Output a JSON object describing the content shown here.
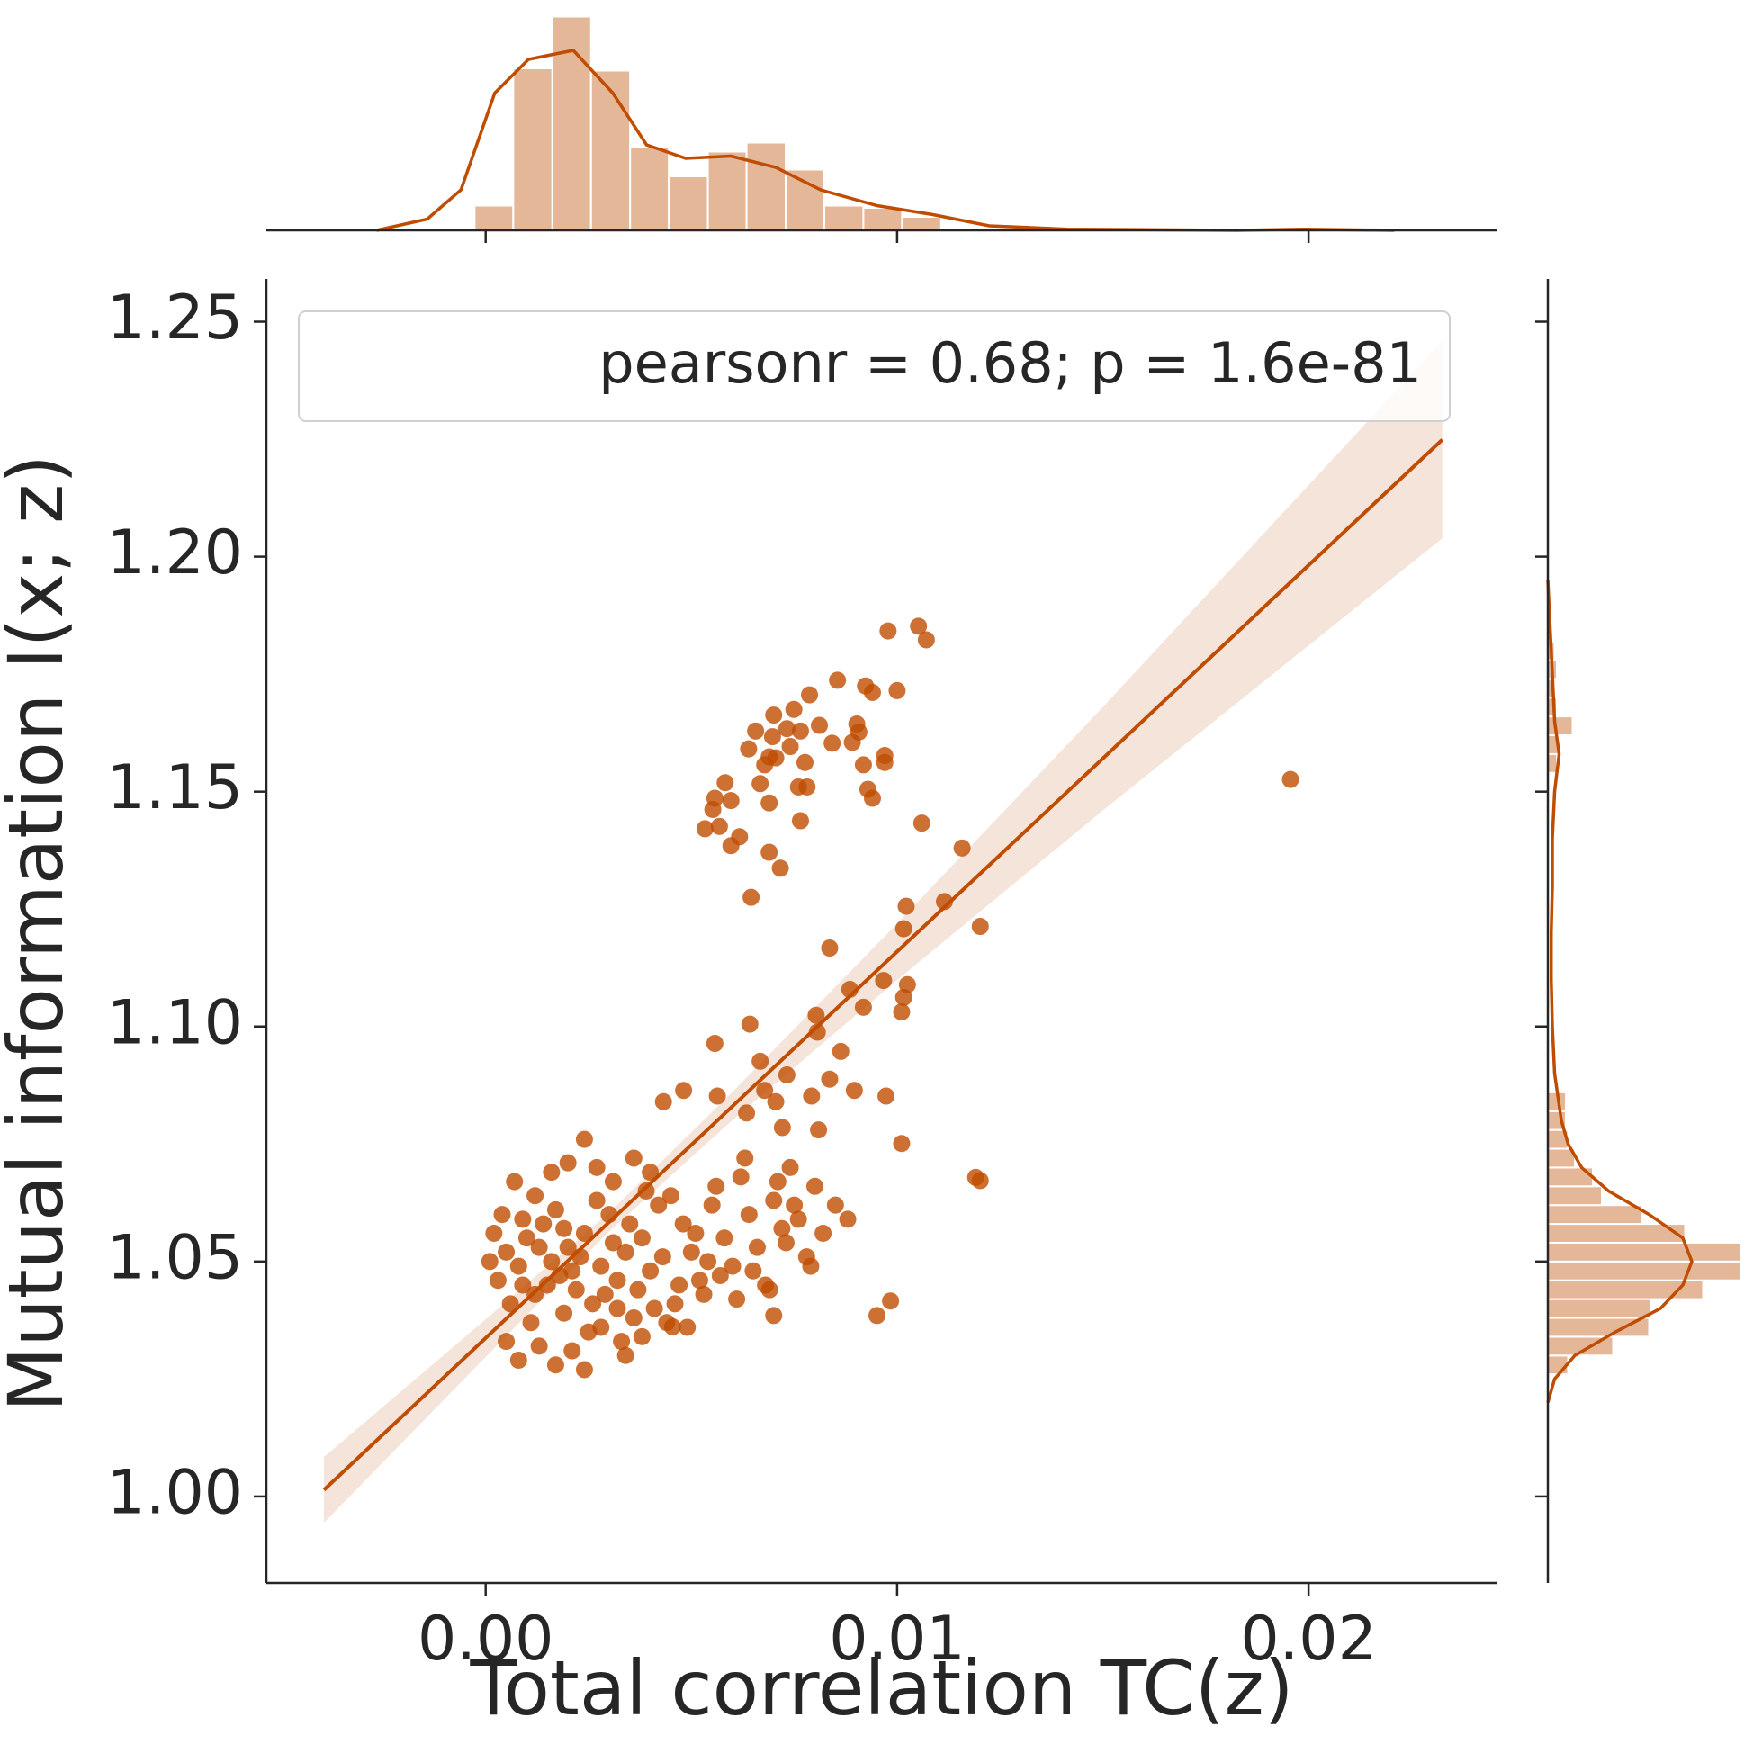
{
  "chart_data": {
    "type": "scatter",
    "xlabel": "Total correlation TC(z)",
    "ylabel": "Mutual information I(x; z)",
    "annotation": "pearsonr = 0.68; p = 1.6e-81",
    "color": "#bf4c00",
    "xlim": [
      -0.00533,
      0.02459
    ],
    "ylim": [
      0.9816,
      1.2591
    ],
    "xticks": [
      {
        "value": 0,
        "label": "0.00"
      },
      {
        "value": 0.01,
        "label": "0.01"
      },
      {
        "value": 0.02,
        "label": "0.02"
      }
    ],
    "yticks": [
      {
        "value": 1,
        "label": "1.00"
      },
      {
        "value": 1.05,
        "label": "1.05"
      },
      {
        "value": 1.1,
        "label": "1.10"
      },
      {
        "value": 1.15,
        "label": "1.15"
      },
      {
        "value": 1.2,
        "label": "1.20"
      },
      {
        "value": 1.25,
        "label": "1.25"
      }
    ],
    "x": [
      0.00978,
      0.01052,
      0.01071,
      0.00855,
      0.00923,
      0.01,
      0.0094,
      0.00787,
      0.00749,
      0.007,
      0.00811,
      0.00732,
      0.00656,
      0.00902,
      0.00907,
      0.00765,
      0.00842,
      0.00697,
      0.0074,
      0.0097,
      0.00639,
      0.00689,
      0.00678,
      0.00705,
      0.00891,
      0.00918,
      0.0097,
      0.00776,
      0.00582,
      0.00557,
      0.00552,
      0.00596,
      0.00667,
      0.0076,
      0.00781,
      0.00929,
      0.0094,
      0.00689,
      0.00533,
      0.00568,
      0.00617,
      0.00596,
      0.00765,
      0.0106,
      0.00689,
      0.00716,
      0.00645,
      0.01158,
      0.01115,
      0.01022,
      0.01016,
      0.01202,
      0.00836,
      0.01956,
      0.00967,
      0.01025,
      0.01016,
      0.00885,
      0.00918,
      0.01011,
      0.00803,
      0.00642,
      0.00557,
      0.00667,
      0.00563,
      0.00481,
      0.00432,
      0.00806,
      0.00863,
      0.00732,
      0.00678,
      0.00705,
      0.00792,
      0.00896,
      0.00973,
      0.00836,
      0.00809,
      0.01011,
      0.01191,
      0.01202,
      0.00634,
      0.00721,
      0.00951,
      0.00984,
      0.007,
      0.00454,
      0.0003,
      0.0005,
      0.0008,
      0.001,
      0.0012,
      0.0014,
      0.0016,
      0.0018,
      0.002,
      0.0022,
      0.0024,
      0.0026,
      0.0028,
      0.003,
      0.0032,
      0.0034,
      0.0036,
      0.0038,
      0.004,
      0.0042,
      0.0002,
      0.0006,
      0.0009,
      0.0011,
      0.0013,
      0.0015,
      0.0017,
      0.0019,
      0.0021,
      0.0023,
      0.0025,
      0.0027,
      0.0029,
      0.0031,
      0.0033,
      0.0035,
      0.0037,
      0.0039,
      0.0041,
      0.0043,
      0.0001,
      0.0004,
      0.0007,
      0.0012,
      0.0016,
      0.002,
      0.0024,
      0.0027,
      0.0031,
      0.0036,
      0.004,
      0.0045,
      0.0048,
      0.005,
      0.0052,
      0.0055,
      0.0058,
      0.006,
      0.0062,
      0.0064,
      0.0066,
      0.0068,
      0.007,
      0.0072,
      0.0074,
      0.0076,
      0.0078,
      0.008,
      0.0082,
      0.0085,
      0.0088,
      0.0046,
      0.0049,
      0.0053,
      0.0057,
      0.0061,
      0.0065,
      0.0069,
      0.0073,
      0.0079,
      0.0005,
      0.0008,
      0.0013,
      0.0017,
      0.0021,
      0.0024,
      0.0028,
      0.0032,
      0.0034,
      0.0038,
      0.0044,
      0.0047,
      0.0051,
      0.0054,
      0.0056,
      0.0063,
      0.0071,
      0.0075,
      0.0009,
      0.0019
    ],
    "values": [
      1.1842,
      1.1852,
      1.1823,
      1.1737,
      1.1725,
      1.1715,
      1.1711,
      1.1706,
      1.1675,
      1.1663,
      1.1641,
      1.1634,
      1.1629,
      1.1644,
      1.1627,
      1.1629,
      1.1603,
      1.1617,
      1.1596,
      1.1577,
      1.1591,
      1.1574,
      1.1557,
      1.1572,
      1.1605,
      1.1557,
      1.1562,
      1.1562,
      1.1519,
      1.1486,
      1.1462,
      1.1481,
      1.1517,
      1.151,
      1.151,
      1.1505,
      1.1486,
      1.1476,
      1.1421,
      1.1426,
      1.1404,
      1.1385,
      1.1438,
      1.1433,
      1.1371,
      1.1337,
      1.1275,
      1.138,
      1.1266,
      1.1256,
      1.1208,
      1.1213,
      1.1167,
      1.1526,
      1.1098,
      1.1089,
      1.1062,
      1.1079,
      1.1041,
      1.1031,
      1.1024,
      1.1005,
      1.0964,
      1.0926,
      1.0852,
      1.0864,
      1.084,
      1.0988,
      1.0947,
      1.0897,
      1.0864,
      1.084,
      1.0852,
      1.0864,
      1.0852,
      1.0888,
      1.078,
      1.0751,
      1.0679,
      1.0672,
      1.0816,
      1.0785,
      1.0385,
      1.0416,
      1.0385,
      1.0361,
      1.046,
      1.052,
      1.049,
      1.055,
      1.043,
      1.058,
      1.05,
      1.047,
      1.053,
      1.044,
      1.056,
      1.041,
      1.049,
      1.06,
      1.046,
      1.052,
      1.038,
      1.055,
      1.048,
      1.062,
      1.056,
      1.041,
      1.059,
      1.037,
      1.053,
      1.045,
      1.061,
      1.039,
      1.048,
      1.051,
      1.035,
      1.063,
      1.043,
      1.054,
      1.033,
      1.058,
      1.044,
      1.065,
      1.04,
      1.051,
      1.05,
      1.06,
      1.067,
      1.064,
      1.069,
      1.071,
      1.076,
      1.07,
      1.067,
      1.072,
      1.069,
      1.064,
      1.058,
      1.052,
      1.046,
      1.062,
      1.055,
      1.049,
      1.068,
      1.06,
      1.053,
      1.045,
      1.063,
      1.057,
      1.07,
      1.059,
      1.051,
      1.066,
      1.056,
      1.062,
      1.059,
      1.041,
      1.036,
      1.043,
      1.047,
      1.042,
      1.048,
      1.044,
      1.054,
      1.049,
      1.033,
      1.029,
      1.032,
      1.028,
      1.031,
      1.027,
      1.036,
      1.04,
      1.03,
      1.034,
      1.037,
      1.045,
      1.056,
      1.05,
      1.066,
      1.072,
      1.067,
      1.062,
      1.045,
      1.057
    ],
    "regression": {
      "x": [
        -0.00393,
        0.02325
      ],
      "y": [
        1.0014,
        1.2249
      ]
    },
    "ci": {
      "x": [
        -0.00393,
        0,
        0.003,
        0.006,
        0.01,
        0.015,
        0.02325
      ],
      "lower": [
        0.9944,
        1.0297,
        1.0564,
        1.0801,
        1.1099,
        1.146,
        1.2039
      ],
      "upper": [
        1.0084,
        1.0377,
        1.0604,
        1.0861,
        1.1219,
        1.168,
        1.2459
      ]
    },
    "top_hist": {
      "bins": [
        -0.00027,
        0.00067,
        0.00162,
        0.00256,
        0.00351,
        0.00445,
        0.0054,
        0.00634,
        0.00729,
        0.00823,
        0.00918,
        0.01012,
        0.01107
      ],
      "counts": [
        11,
        72,
        95,
        71,
        37,
        24,
        35,
        39,
        27,
        11,
        10,
        6
      ]
    },
    "top_kde": {
      "x": [
        -0.00265,
        -0.00142,
        -0.0006,
        0.00022,
        0.00104,
        0.00213,
        0.00309,
        0.00391,
        0.00486,
        0.00596,
        0.00705,
        0.00814,
        0.00951,
        0.01087,
        0.01224,
        0.01415,
        0.01825,
        0.01989,
        0.02208
      ],
      "density": [
        0,
        5,
        18,
        61,
        76,
        80,
        61,
        38,
        32,
        33,
        28,
        18,
        11,
        7,
        2,
        0.5,
        0,
        0.5,
        0
      ]
    },
    "right_hist": {
      "bins": [
        1.026,
        1.03,
        1.034,
        1.038,
        1.042,
        1.046,
        1.05,
        1.054,
        1.058,
        1.062,
        1.066,
        1.07,
        1.074,
        1.078,
        1.082,
        1.086,
        1.09,
        1.094,
        1.098,
        1.102,
        1.106,
        1.11,
        1.114,
        1.118,
        1.122,
        1.126,
        1.13,
        1.134,
        1.138,
        1.142,
        1.146,
        1.15,
        1.154,
        1.158,
        1.162,
        1.166,
        1.17,
        1.174,
        1.178,
        1.182,
        1.186
      ],
      "counts": [
        9,
        29,
        45,
        46,
        69,
        86,
        86,
        61,
        42,
        24,
        20,
        12,
        9,
        8,
        8,
        0,
        0,
        0,
        0,
        0,
        0,
        0,
        0,
        0,
        0,
        0,
        0,
        0,
        0,
        0,
        0,
        0,
        4,
        5,
        11,
        4,
        3,
        4,
        3,
        2
      ]
    },
    "right_kde": {
      "y": [
        1.02,
        1.025,
        1.03,
        1.035,
        1.04,
        1.045,
        1.05,
        1.055,
        1.06,
        1.065,
        1.07,
        1.075,
        1.08,
        1.09,
        1.1,
        1.11,
        1.12,
        1.13,
        1.14,
        1.15,
        1.158,
        1.165,
        1.175,
        1.185,
        1.195
      ],
      "density": [
        0,
        3,
        12,
        30,
        50,
        60,
        64,
        60,
        45,
        27,
        15,
        9,
        6,
        3,
        2,
        1.5,
        1.5,
        2,
        2,
        3,
        5,
        3,
        2,
        1,
        0
      ]
    }
  }
}
